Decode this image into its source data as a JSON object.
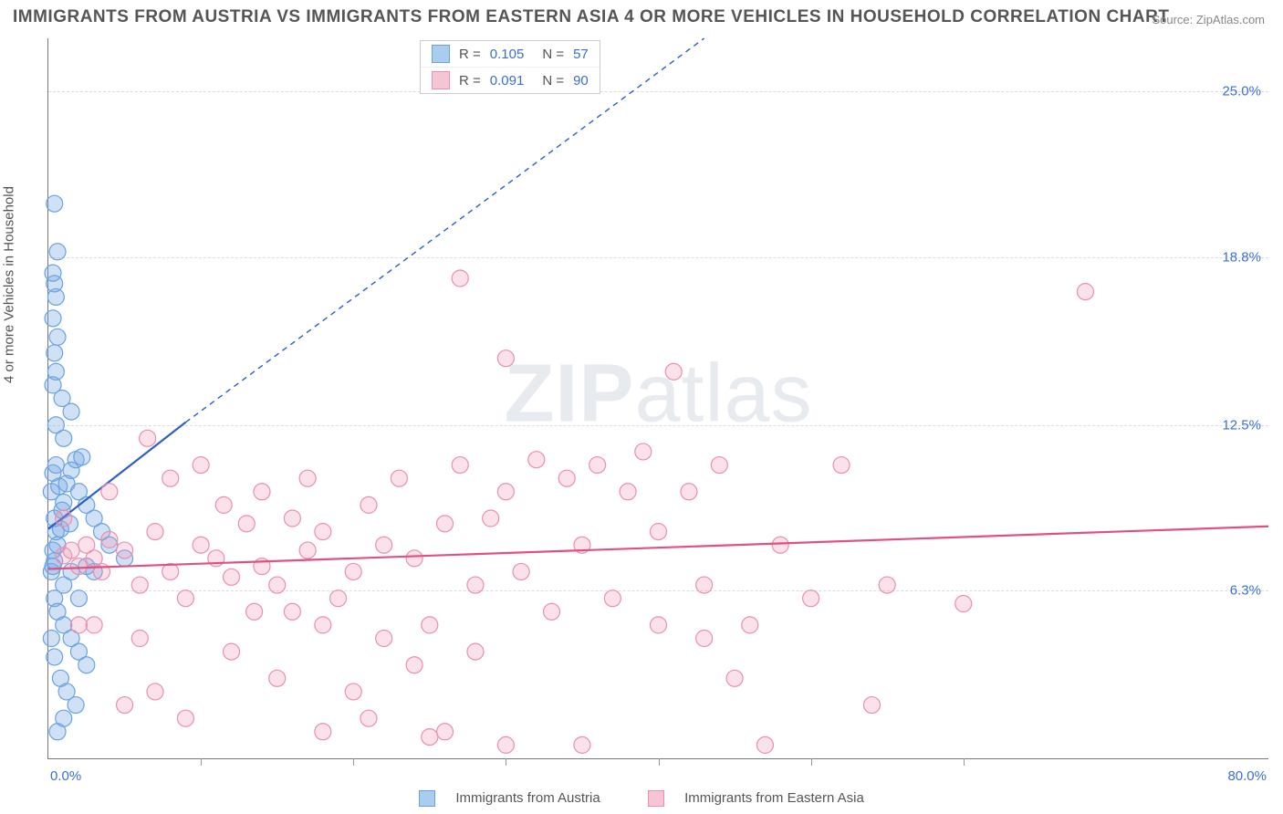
{
  "title": "IMMIGRANTS FROM AUSTRIA VS IMMIGRANTS FROM EASTERN ASIA 4 OR MORE VEHICLES IN HOUSEHOLD CORRELATION CHART",
  "source": "Source: ZipAtlas.com",
  "watermark": "ZIPatlas",
  "ylabel": "4 or more Vehicles in Household",
  "chart": {
    "type": "scatter",
    "xlim": [
      0,
      80
    ],
    "ylim": [
      0,
      27
    ],
    "x_tick_positions": [
      10,
      20,
      30,
      40,
      50,
      60
    ],
    "y_gridlines": [
      {
        "value": 6.3,
        "label": "6.3%"
      },
      {
        "value": 12.5,
        "label": "12.5%"
      },
      {
        "value": 18.8,
        "label": "18.8%"
      },
      {
        "value": 25.0,
        "label": "25.0%"
      }
    ],
    "xaxis_min_label": "0.0%",
    "xaxis_max_label": "80.0%",
    "grid_color": "#dddddd",
    "axis_color": "#777777",
    "background_color": "#ffffff",
    "marker_radius": 9,
    "marker_stroke_width": 1.2,
    "trend_solid_width": 2.2,
    "trend_dash_pattern": "6,5",
    "series": [
      {
        "id": "austria",
        "name": "Immigrants from Austria",
        "fill_color": "rgba(120,170,230,0.35)",
        "stroke_color": "#6aa2e0",
        "swatch_fill": "#a9cdef",
        "swatch_border": "#6aa2e0",
        "r_value": "0.105",
        "n_value": "57",
        "trend": {
          "color": "#2d5fc4",
          "solid": {
            "x1": 0,
            "y1": 8.6,
            "x2": 9,
            "y2": 12.6
          },
          "dashed": {
            "x1": 9,
            "y1": 12.6,
            "x2": 43,
            "y2": 27
          }
        },
        "points": [
          [
            0.2,
            7.0
          ],
          [
            0.3,
            7.2
          ],
          [
            0.4,
            7.4
          ],
          [
            0.3,
            7.8
          ],
          [
            0.6,
            8.0
          ],
          [
            0.5,
            8.5
          ],
          [
            0.8,
            8.6
          ],
          [
            0.4,
            9.0
          ],
          [
            0.9,
            9.3
          ],
          [
            1.0,
            9.6
          ],
          [
            0.2,
            10.0
          ],
          [
            0.7,
            10.2
          ],
          [
            1.2,
            10.3
          ],
          [
            0.3,
            10.7
          ],
          [
            1.5,
            10.8
          ],
          [
            0.5,
            11.0
          ],
          [
            1.8,
            11.2
          ],
          [
            2.2,
            11.3
          ],
          [
            0.4,
            6.0
          ],
          [
            0.6,
            5.5
          ],
          [
            1.0,
            5.0
          ],
          [
            1.5,
            4.5
          ],
          [
            2.0,
            4.0
          ],
          [
            2.5,
            3.5
          ],
          [
            0.8,
            3.0
          ],
          [
            1.2,
            2.5
          ],
          [
            1.8,
            2.0
          ],
          [
            0.3,
            14.0
          ],
          [
            0.5,
            14.5
          ],
          [
            0.4,
            15.2
          ],
          [
            0.6,
            15.8
          ],
          [
            0.3,
            16.5
          ],
          [
            0.5,
            17.3
          ],
          [
            0.4,
            17.8
          ],
          [
            0.3,
            18.2
          ],
          [
            0.6,
            19.0
          ],
          [
            0.4,
            20.8
          ],
          [
            0.5,
            12.5
          ],
          [
            1.0,
            12.0
          ],
          [
            1.5,
            13.0
          ],
          [
            2.0,
            10.0
          ],
          [
            2.5,
            9.5
          ],
          [
            3.0,
            9.0
          ],
          [
            3.5,
            8.5
          ],
          [
            4.0,
            8.0
          ],
          [
            5.0,
            7.5
          ],
          [
            1.0,
            6.5
          ],
          [
            1.5,
            7.0
          ],
          [
            2.0,
            6.0
          ],
          [
            2.5,
            7.2
          ],
          [
            3.0,
            7.0
          ],
          [
            0.2,
            4.5
          ],
          [
            0.4,
            3.8
          ],
          [
            1.0,
            1.5
          ],
          [
            0.6,
            1.0
          ],
          [
            1.4,
            8.8
          ],
          [
            0.9,
            13.5
          ]
        ]
      },
      {
        "id": "eastern_asia",
        "name": "Immigrants from Eastern Asia",
        "fill_color": "rgba(240,150,180,0.28)",
        "stroke_color": "#e98fb0",
        "swatch_fill": "#f5c5d6",
        "swatch_border": "#e98fb0",
        "r_value": "0.091",
        "n_value": "90",
        "trend": {
          "color": "#e0517f",
          "solid": {
            "x1": 0,
            "y1": 7.1,
            "x2": 80,
            "y2": 8.7
          },
          "dashed": null
        },
        "points": [
          [
            1.0,
            7.6
          ],
          [
            1.5,
            7.8
          ],
          [
            2.0,
            7.2
          ],
          [
            2.5,
            8.0
          ],
          [
            3.0,
            7.5
          ],
          [
            3.5,
            7.0
          ],
          [
            4.0,
            8.2
          ],
          [
            5.0,
            7.8
          ],
          [
            6.0,
            6.5
          ],
          [
            7.0,
            8.5
          ],
          [
            8.0,
            7.0
          ],
          [
            9.0,
            6.0
          ],
          [
            10.0,
            8.0
          ],
          [
            11.0,
            7.5
          ],
          [
            12.0,
            6.8
          ],
          [
            13.0,
            8.8
          ],
          [
            14.0,
            7.2
          ],
          [
            15.0,
            6.5
          ],
          [
            16.0,
            9.0
          ],
          [
            17.0,
            7.8
          ],
          [
            18.0,
            8.5
          ],
          [
            19.0,
            6.0
          ],
          [
            20.0,
            7.0
          ],
          [
            21.0,
            9.5
          ],
          [
            22.0,
            8.0
          ],
          [
            23.0,
            10.5
          ],
          [
            24.0,
            7.5
          ],
          [
            25.0,
            5.0
          ],
          [
            26.0,
            8.8
          ],
          [
            27.0,
            11.0
          ],
          [
            28.0,
            6.5
          ],
          [
            29.0,
            9.0
          ],
          [
            30.0,
            10.0
          ],
          [
            31.0,
            7.0
          ],
          [
            32.0,
            11.2
          ],
          [
            33.0,
            5.5
          ],
          [
            34.0,
            10.5
          ],
          [
            35.0,
            8.0
          ],
          [
            36.0,
            11.0
          ],
          [
            37.0,
            6.0
          ],
          [
            38.0,
            10.0
          ],
          [
            39.0,
            11.5
          ],
          [
            40.0,
            8.5
          ],
          [
            41.0,
            14.5
          ],
          [
            42.0,
            10.0
          ],
          [
            43.0,
            6.5
          ],
          [
            44.0,
            11.0
          ],
          [
            45.0,
            3.0
          ],
          [
            27.0,
            18.0
          ],
          [
            30.0,
            15.0
          ],
          [
            50.0,
            6.0
          ],
          [
            52.0,
            11.0
          ],
          [
            54.0,
            2.0
          ],
          [
            48.0,
            8.0
          ],
          [
            47.0,
            0.5
          ],
          [
            46.0,
            5.0
          ],
          [
            55.0,
            6.5
          ],
          [
            60.0,
            5.8
          ],
          [
            68.0,
            17.5
          ],
          [
            5.0,
            2.0
          ],
          [
            7.0,
            2.5
          ],
          [
            9.0,
            1.5
          ],
          [
            12.0,
            4.0
          ],
          [
            15.0,
            3.0
          ],
          [
            18.0,
            5.0
          ],
          [
            20.0,
            2.5
          ],
          [
            22.0,
            4.5
          ],
          [
            24.0,
            3.5
          ],
          [
            26.0,
            1.0
          ],
          [
            28.0,
            4.0
          ],
          [
            30.0,
            0.5
          ],
          [
            3.0,
            5.0
          ],
          [
            6.0,
            4.5
          ],
          [
            8.0,
            10.5
          ],
          [
            10.0,
            11.0
          ],
          [
            14.0,
            10.0
          ],
          [
            16.0,
            5.5
          ],
          [
            4.0,
            10.0
          ],
          [
            2.0,
            5.0
          ],
          [
            1.0,
            9.0
          ],
          [
            25.0,
            0.8
          ],
          [
            35.0,
            0.5
          ],
          [
            40.0,
            5.0
          ],
          [
            43.0,
            4.5
          ],
          [
            18.0,
            1.0
          ],
          [
            21.0,
            1.5
          ],
          [
            6.5,
            12.0
          ],
          [
            11.5,
            9.5
          ],
          [
            13.5,
            5.5
          ],
          [
            17.0,
            10.5
          ]
        ]
      }
    ]
  },
  "legend_bottom": {
    "items": [
      {
        "series_ref": "austria"
      },
      {
        "series_ref": "eastern_asia"
      }
    ]
  }
}
